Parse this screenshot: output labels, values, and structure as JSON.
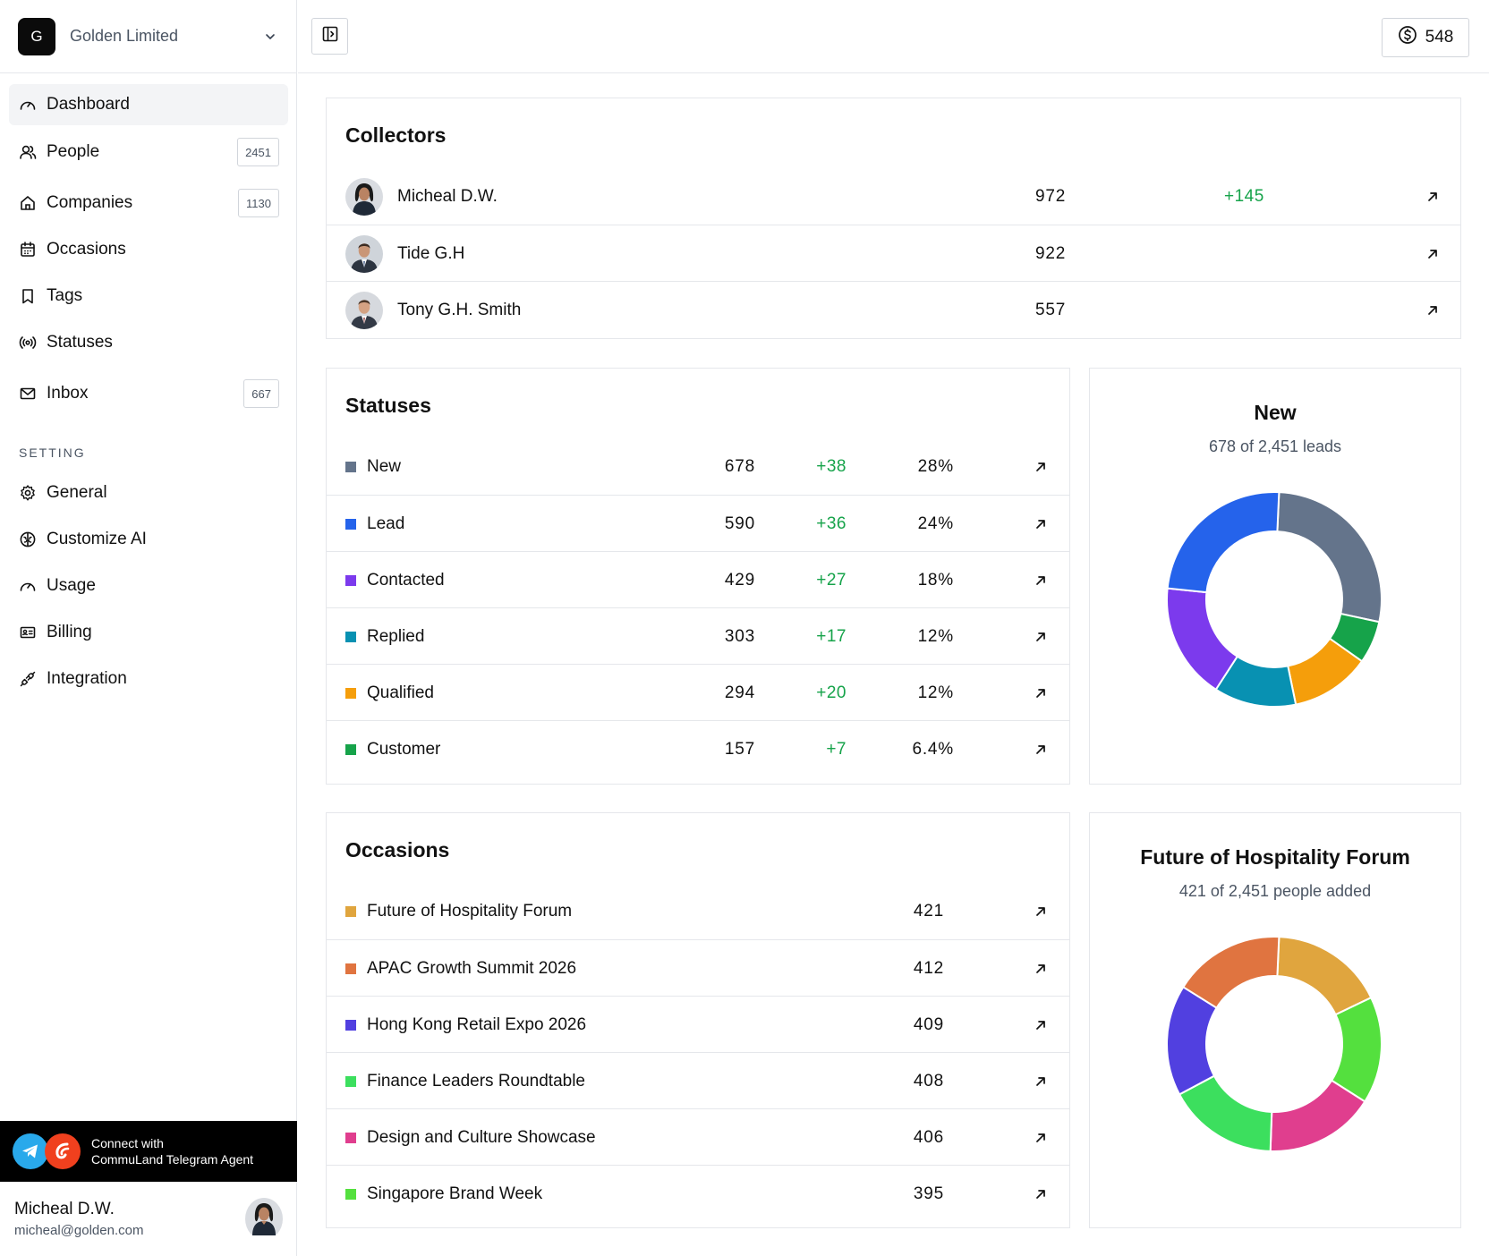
{
  "org": {
    "logo_letter": "G",
    "name": "Golden Limited"
  },
  "nav": {
    "items": [
      {
        "label": "Dashboard",
        "icon": "gauge-icon"
      },
      {
        "label": "People",
        "badge": "2451",
        "icon": "users-icon"
      },
      {
        "label": "Companies",
        "badge": "1130",
        "icon": "home-icon"
      },
      {
        "label": "Occasions",
        "icon": "calendar-icon"
      },
      {
        "label": "Tags",
        "icon": "bookmark-icon"
      },
      {
        "label": "Statuses",
        "icon": "broadcast-icon"
      },
      {
        "label": "Inbox",
        "badge": "667",
        "icon": "mail-icon"
      }
    ],
    "setting_label": "SETTING",
    "settings": [
      {
        "label": "General",
        "icon": "gear-icon"
      },
      {
        "label": "Customize AI",
        "icon": "brain-icon"
      },
      {
        "label": "Usage",
        "icon": "gauge-icon"
      },
      {
        "label": "Billing",
        "icon": "id-card-icon"
      },
      {
        "label": "Integration",
        "icon": "plug-icon"
      }
    ]
  },
  "telegram": {
    "line1": "Connect with",
    "line2": "CommuLand Telegram Agent"
  },
  "user": {
    "name": "Micheal D.W.",
    "email": "micheal@golden.com"
  },
  "header": {
    "credits": "548"
  },
  "collectors": {
    "title": "Collectors",
    "rows": [
      {
        "name": "Micheal D.W.",
        "value": "972",
        "delta": "+145"
      },
      {
        "name": "Tide G.H",
        "value": "922",
        "delta": ""
      },
      {
        "name": "Tony G.H. Smith",
        "value": "557",
        "delta": ""
      }
    ]
  },
  "statuses": {
    "title": "Statuses",
    "rows": [
      {
        "name": "New",
        "value": "678",
        "delta": "+38",
        "pct": "28%",
        "color": "#64748b"
      },
      {
        "name": "Lead",
        "value": "590",
        "delta": "+36",
        "pct": "24%",
        "color": "#2563eb"
      },
      {
        "name": "Contacted",
        "value": "429",
        "delta": "+27",
        "pct": "18%",
        "color": "#7c3aed"
      },
      {
        "name": "Replied",
        "value": "303",
        "delta": "+17",
        "pct": "12%",
        "color": "#0891b2"
      },
      {
        "name": "Qualified",
        "value": "294",
        "delta": "+20",
        "pct": "12%",
        "color": "#f59e0b"
      },
      {
        "name": "Customer",
        "value": "157",
        "delta": "+7",
        "pct": "6.4%",
        "color": "#16a34a"
      }
    ]
  },
  "status_donut": {
    "title": "New",
    "subtitle": "678 of 2,451 leads"
  },
  "occasions": {
    "title": "Occasions",
    "rows": [
      {
        "name": "Future of Hospitality Forum",
        "value": "421",
        "color": "#e0a53e"
      },
      {
        "name": "APAC Growth Summit 2026",
        "value": "412",
        "color": "#e07440"
      },
      {
        "name": "Hong Kong Retail Expo 2026",
        "value": "409",
        "color": "#5140e0"
      },
      {
        "name": "Finance Leaders Roundtable",
        "value": "408",
        "color": "#3cdf5e"
      },
      {
        "name": "Design and Culture Showcase",
        "value": "406",
        "color": "#e03e8e"
      },
      {
        "name": "Singapore Brand Week",
        "value": "395",
        "color": "#54e03e"
      }
    ]
  },
  "occasion_donut": {
    "title": "Future of Hospitality Forum",
    "subtitle": "421 of 2,451 people added"
  },
  "chart_data": [
    {
      "type": "pie",
      "categories": [
        "New",
        "Lead",
        "Contacted",
        "Replied",
        "Qualified",
        "Customer"
      ],
      "values": [
        678,
        590,
        429,
        303,
        294,
        157
      ],
      "colors": [
        "#64748b",
        "#2563eb",
        "#7c3aed",
        "#0891b2",
        "#f59e0b",
        "#16a34a"
      ],
      "order": [
        "New",
        "Customer",
        "Qualified",
        "Replied",
        "Contacted",
        "Lead"
      ],
      "donut": true
    },
    {
      "type": "pie",
      "categories": [
        "Future of Hospitality Forum",
        "APAC Growth Summit 2026",
        "Hong Kong Retail Expo 2026",
        "Finance Leaders Roundtable",
        "Design and Culture Showcase",
        "Singapore Brand Week"
      ],
      "values": [
        421,
        412,
        409,
        408,
        406,
        395
      ],
      "colors": [
        "#e0a53e",
        "#e07440",
        "#5140e0",
        "#3cdf5e",
        "#e03e8e",
        "#54e03e"
      ],
      "order": [
        "Future of Hospitality Forum",
        "Singapore Brand Week",
        "Design and Culture Showcase",
        "Finance Leaders Roundtable",
        "Hong Kong Retail Expo 2026",
        "APAC Growth Summit 2026"
      ],
      "donut": true
    }
  ]
}
